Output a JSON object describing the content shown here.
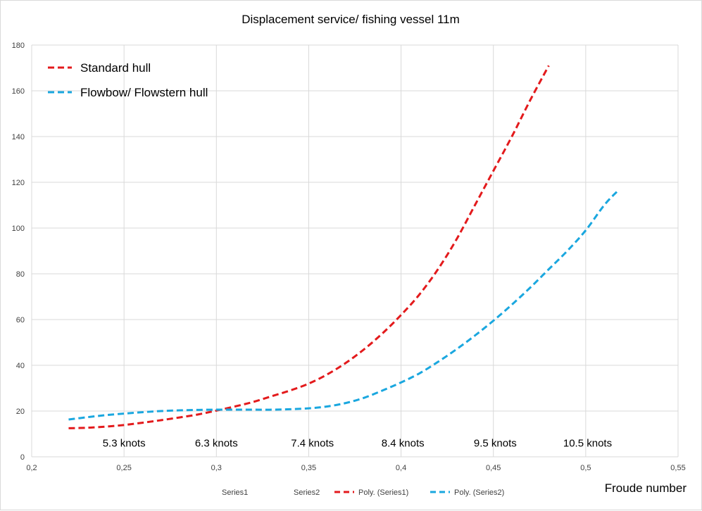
{
  "chart_data": {
    "type": "line",
    "title": "Displacement service/ fishing vessel 11m",
    "xlabel": "Froude number",
    "ylabel": "",
    "xlim": [
      0.2,
      0.55
    ],
    "ylim": [
      0,
      180
    ],
    "x_ticks": [
      0.2,
      0.25,
      0.3,
      0.35,
      0.4,
      0.45,
      0.5,
      0.55
    ],
    "x_tick_labels": [
      "0,2",
      "0,25",
      "0,3",
      "0,35",
      "0,4",
      "0,45",
      "0,5",
      "0,55"
    ],
    "y_ticks": [
      0,
      20,
      40,
      60,
      80,
      100,
      120,
      140,
      160,
      180
    ],
    "y_tick_labels": [
      "0",
      "20",
      "40",
      "60",
      "80",
      "100",
      "120",
      "140",
      "160",
      "180"
    ],
    "grid": true,
    "series": [
      {
        "name": "Standard hull",
        "color": "#e31a1c",
        "dash": true,
        "x": [
          0.22,
          0.23,
          0.24,
          0.25,
          0.26,
          0.27,
          0.28,
          0.29,
          0.3,
          0.31,
          0.32,
          0.33,
          0.34,
          0.35,
          0.36,
          0.37,
          0.38,
          0.39,
          0.4,
          0.41,
          0.42,
          0.43,
          0.44,
          0.45,
          0.46,
          0.47,
          0.48
        ],
        "y": [
          12.5,
          12.7,
          13.2,
          13.9,
          14.9,
          16.0,
          17.2,
          18.5,
          20.2,
          22.0,
          24.0,
          26.5,
          29.0,
          32.0,
          36.0,
          41.0,
          47.0,
          54.0,
          62.0,
          71.0,
          82.0,
          95.0,
          110.0,
          125.0,
          140.0,
          156.0,
          171.0
        ]
      },
      {
        "name": "Flowbow/ Flowstern hull",
        "color": "#1aa7df",
        "dash": true,
        "x": [
          0.22,
          0.23,
          0.24,
          0.25,
          0.26,
          0.27,
          0.28,
          0.29,
          0.3,
          0.31,
          0.32,
          0.33,
          0.34,
          0.35,
          0.36,
          0.37,
          0.38,
          0.39,
          0.4,
          0.41,
          0.42,
          0.43,
          0.44,
          0.45,
          0.46,
          0.47,
          0.48,
          0.49,
          0.5,
          0.51,
          0.517
        ],
        "y": [
          16.3,
          17.3,
          18.2,
          18.9,
          19.5,
          20.0,
          20.3,
          20.5,
          20.6,
          20.6,
          20.6,
          20.6,
          20.8,
          21.2,
          22.0,
          23.5,
          25.8,
          29.0,
          32.5,
          36.5,
          41.5,
          47.0,
          53.0,
          59.5,
          66.5,
          74.0,
          82.0,
          90.0,
          99.0,
          110.0,
          116.0
        ]
      }
    ],
    "annotations": [
      {
        "text": "5.3 knots",
        "x": 0.25,
        "y": 4.5
      },
      {
        "text": "6.3 knots",
        "x": 0.3,
        "y": 4.5
      },
      {
        "text": "7.4 knots",
        "x": 0.352,
        "y": 4.5
      },
      {
        "text": "8.4 knots",
        "x": 0.401,
        "y": 4.5
      },
      {
        "text": "9.5 knots",
        "x": 0.451,
        "y": 4.5
      },
      {
        "text": "10.5 knots",
        "x": 0.501,
        "y": 4.5
      }
    ],
    "legend_top": {
      "placement": "top-left",
      "entries": [
        {
          "label": "Standard hull",
          "color": "#e31a1c"
        },
        {
          "label": "Flowbow/ Flowstern hull",
          "color": "#1aa7df"
        }
      ]
    },
    "legend_bottom": {
      "placement": "bottom",
      "entries": [
        {
          "label": "Series1",
          "marker": "none"
        },
        {
          "label": "Series2",
          "marker": "none"
        },
        {
          "label": "Poly. (Series1)",
          "color": "#e31a1c",
          "marker": "dash"
        },
        {
          "label": "Poly. (Series2)",
          "color": "#1aa7df",
          "marker": "dash"
        }
      ]
    }
  }
}
